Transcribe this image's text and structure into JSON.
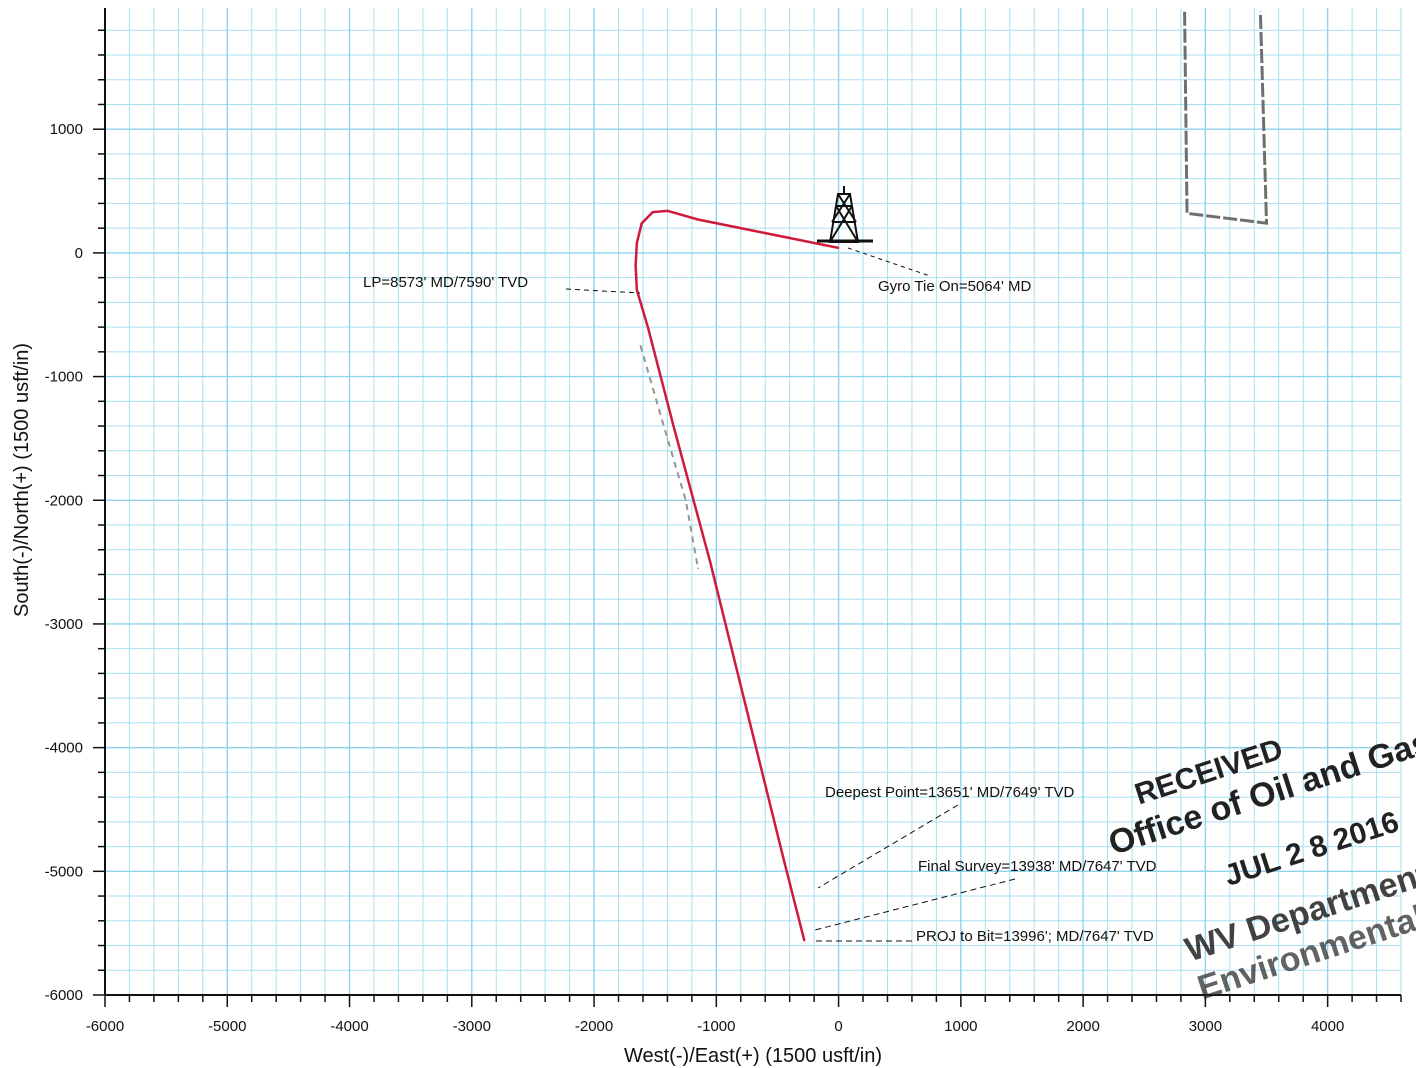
{
  "chart_data": {
    "type": "line",
    "title": "",
    "xlabel": "West(-)/East(+) (1500 usft/in)",
    "ylabel": "South(-)/North(+) (1500 usft/in)",
    "xlim": [
      -6000,
      4600
    ],
    "ylim": [
      -6000,
      1980
    ],
    "xticks": [
      -6000,
      -5000,
      -4000,
      -3000,
      -2000,
      -1000,
      0,
      1000,
      2000,
      3000,
      4000
    ],
    "xtick_labels": [
      "-6000",
      "-5000",
      "-4000",
      "-3000",
      "-2000",
      "-1000",
      "0",
      "1000",
      "2000",
      "3000",
      "4000"
    ],
    "yticks": [
      1000,
      0,
      -1000,
      -2000,
      -3000,
      -4000,
      -5000,
      -6000
    ],
    "ytick_labels": [
      "1000",
      "0",
      "-1000",
      "-2000",
      "-3000",
      "-4000",
      "-5000",
      "-6000"
    ],
    "grid": true,
    "series": [
      {
        "color": "#d01a3c",
        "x": [
          0,
          -300,
          -700,
          -1150,
          -1400,
          -1520,
          -1610,
          -1650,
          -1660,
          -1650,
          -1560,
          -1350,
          -1050,
          -750,
          -450,
          -280
        ],
        "y": [
          40,
          100,
          180,
          270,
          340,
          330,
          240,
          80,
          -100,
          -300,
          -600,
          -1400,
          -2500,
          -3700,
          -4900,
          -5560
        ]
      },
      {
        "color": "#8f9a8f",
        "style": "dashed",
        "x": [
          -1620,
          -1400,
          -1250,
          -1150
        ],
        "y": [
          -750,
          -1500,
          -2000,
          -2550
        ]
      }
    ],
    "lease_outline": {
      "color": "#6f6f6f",
      "x": [
        2830,
        2850,
        3500,
        3450
      ],
      "y": [
        1950,
        320,
        240,
        1950
      ]
    },
    "annotations": [
      {
        "text": "LP=8573' MD/7590' TVD"
      },
      {
        "text": "Gyro Tie On=5064' MD"
      },
      {
        "text": "Deepest Point=13651' MD/7649' TVD"
      },
      {
        "text": "Final Survey=13938' MD/7647' TVD"
      },
      {
        "text": "PROJ to Bit=13996'; MD/7647' TVD"
      }
    ]
  },
  "stamp": {
    "line1": "RECEIVED",
    "line2": "Office of Oil and Gas",
    "line3": "JUL 2 8 2016",
    "line4": "WV Department of",
    "line5": "Environmental Protection"
  },
  "colors": {
    "grid": "#a9dff2",
    "axis": "#111111",
    "well_path": "#d01a3c",
    "rig": "#111111"
  },
  "icons": {
    "rig": "drilling-rig-icon"
  }
}
